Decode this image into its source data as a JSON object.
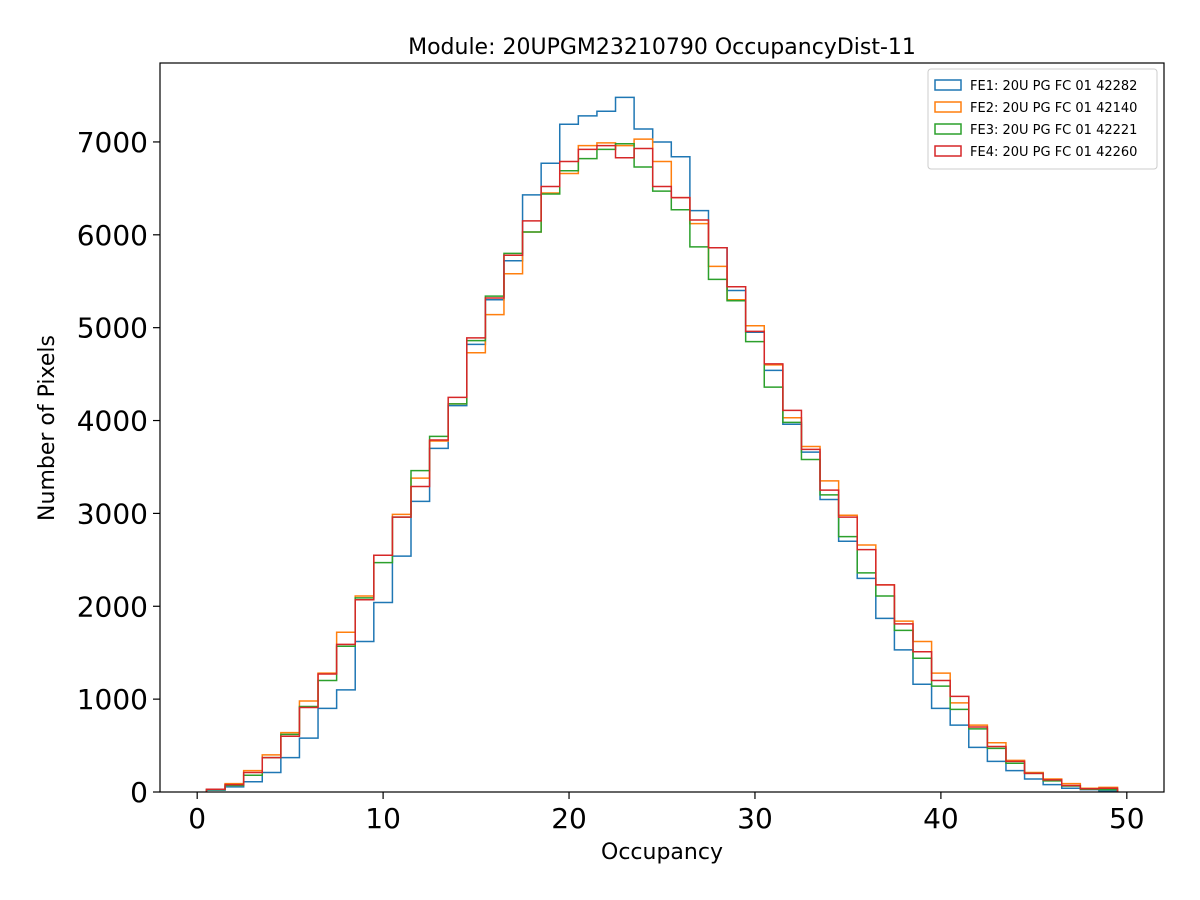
{
  "chart_data": {
    "type": "step-histogram",
    "title": "Module: 20UPGM23210790 OccupancyDist-11",
    "xlabel": "Occupancy",
    "ylabel": "Number of Pixels",
    "xlim": [
      -2,
      52
    ],
    "ylim": [
      0,
      7850
    ],
    "xticks": [
      0,
      10,
      20,
      30,
      40,
      50
    ],
    "yticks": [
      0,
      1000,
      2000,
      3000,
      4000,
      5000,
      6000,
      7000
    ],
    "bin_edges_start": 0.5,
    "bin_width": 1,
    "legend_position": "top-right",
    "series": [
      {
        "name": "FE1: 20U PG FC 01 42282",
        "color": "#1f77b4",
        "values": [
          20,
          55,
          110,
          210,
          370,
          580,
          900,
          1100,
          1620,
          2040,
          2540,
          3130,
          3700,
          4160,
          4820,
          5300,
          5720,
          6430,
          6770,
          7190,
          7280,
          7330,
          7480,
          7140,
          7000,
          6840,
          6260,
          5860,
          5400,
          4950,
          4540,
          3960,
          3660,
          3150,
          2700,
          2300,
          1870,
          1530,
          1160,
          900,
          720,
          480,
          330,
          230,
          140,
          80,
          40,
          25,
          10
        ]
      },
      {
        "name": "FE2: 20U PG FC 01 42140",
        "color": "#ff7f0e",
        "values": [
          30,
          90,
          230,
          400,
          640,
          980,
          1280,
          1720,
          2110,
          2550,
          2990,
          3380,
          3780,
          4180,
          4730,
          5140,
          5580,
          6030,
          6450,
          6660,
          6960,
          6990,
          6960,
          7030,
          6790,
          6400,
          6120,
          5660,
          5300,
          5020,
          4600,
          4030,
          3720,
          3350,
          2980,
          2660,
          2230,
          1840,
          1620,
          1280,
          960,
          720,
          530,
          340,
          210,
          140,
          90,
          40,
          50
        ]
      },
      {
        "name": "FE3: 20U PG FC 01 42221",
        "color": "#2ca02c",
        "values": [
          25,
          70,
          180,
          370,
          620,
          920,
          1200,
          1570,
          2090,
          2470,
          2960,
          3460,
          3830,
          4180,
          4860,
          5340,
          5800,
          6030,
          6440,
          6690,
          6820,
          6920,
          6980,
          6730,
          6470,
          6270,
          5870,
          5520,
          5290,
          4850,
          4360,
          3980,
          3580,
          3200,
          2750,
          2360,
          2110,
          1740,
          1440,
          1140,
          890,
          680,
          470,
          310,
          200,
          120,
          65,
          30,
          25
        ]
      },
      {
        "name": "FE4: 20U PG FC 01 42260",
        "color": "#d62728",
        "values": [
          30,
          80,
          210,
          370,
          600,
          910,
          1270,
          1590,
          2070,
          2550,
          2960,
          3290,
          3790,
          4250,
          4890,
          5320,
          5780,
          6150,
          6520,
          6790,
          6920,
          6960,
          6830,
          6930,
          6520,
          6400,
          6160,
          5860,
          5440,
          4960,
          4610,
          4110,
          3690,
          3250,
          2960,
          2610,
          2230,
          1810,
          1510,
          1200,
          1030,
          700,
          490,
          330,
          200,
          130,
          70,
          35,
          40
        ]
      }
    ]
  }
}
